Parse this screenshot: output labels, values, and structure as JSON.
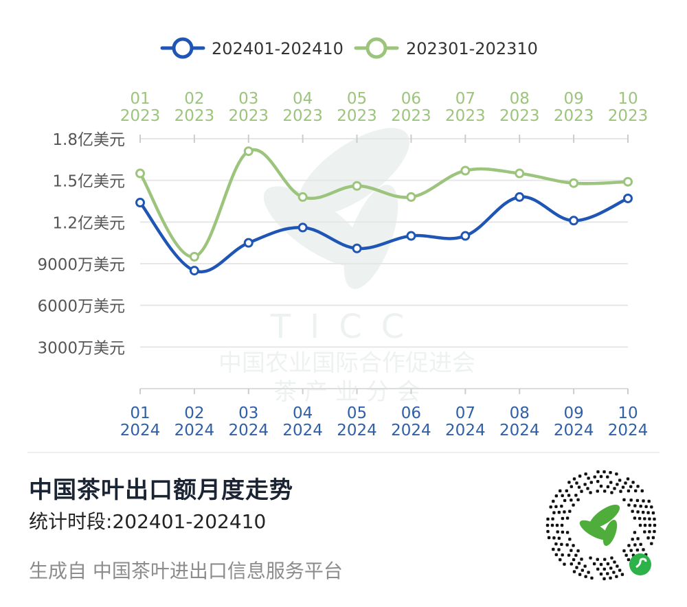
{
  "chart_data": {
    "type": "line",
    "title": "中国茶叶出口额月度走势",
    "subtitle": "统计时段:202401-202410",
    "legend": {
      "placement": "top-center"
    },
    "y_ticks": [
      "3000万美元",
      "6000万美元",
      "9000万美元",
      "1.2亿美元",
      "1.5亿美元",
      "1.8亿美元"
    ],
    "y_tick_values": [
      30000000,
      60000000,
      90000000,
      120000000,
      150000000,
      180000000
    ],
    "ylim": [
      0,
      180000000
    ],
    "grid": true,
    "x_bottom": {
      "months": [
        "01",
        "02",
        "03",
        "04",
        "05",
        "06",
        "07",
        "08",
        "09",
        "10"
      ],
      "year": "2024"
    },
    "x_top": {
      "months": [
        "01",
        "02",
        "03",
        "04",
        "05",
        "06",
        "07",
        "08",
        "09",
        "10"
      ],
      "year": "2023"
    },
    "series": [
      {
        "name": "202401-202410",
        "color": "#1f56b5",
        "axis": "bottom",
        "values": [
          134000000,
          85000000,
          105000000,
          116000000,
          101000000,
          110000000,
          110000000,
          138000000,
          121000000,
          137000000
        ]
      },
      {
        "name": "202301-202310",
        "color": "#9cc47c",
        "axis": "top",
        "values": [
          155000000,
          95000000,
          171000000,
          138000000,
          146000000,
          138000000,
          157000000,
          155000000,
          148000000,
          149000000
        ]
      }
    ]
  },
  "watermark": {
    "logo_text": "TICC",
    "org_line1": "中国农业国际合作促进会",
    "org_line2": "茶 产 业 分 会"
  },
  "footer": {
    "title": "中国茶叶出口额月度走势",
    "subtitle": "统计时段:202401-202410",
    "source": "生成自 中国茶叶进出口信息服务平台"
  },
  "qr": {
    "icon": "qr-code-miniprogram-icon",
    "accent": "#4fae3b"
  }
}
